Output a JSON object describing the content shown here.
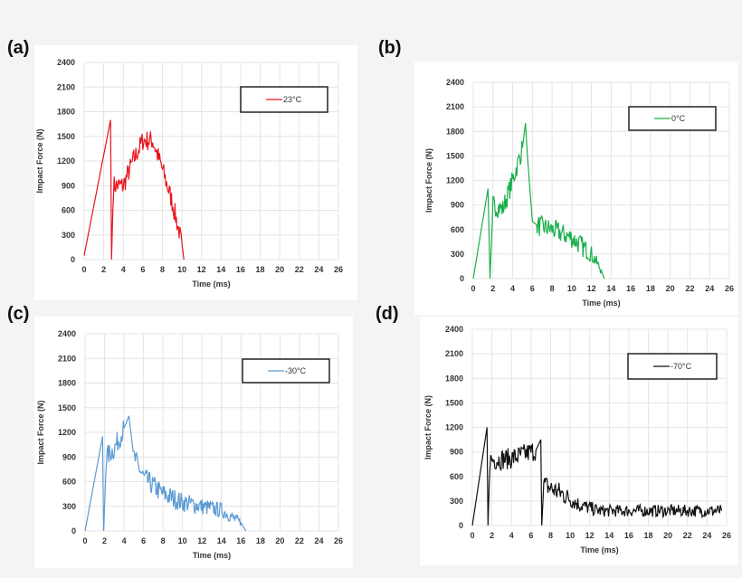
{
  "chart_data": [
    {
      "type": "line",
      "panel_label": "(a)",
      "xlabel": "Time (ms)",
      "ylabel": "Impact Force (N)",
      "xlim": [
        0,
        26
      ],
      "ylim": [
        0,
        2400
      ],
      "xticks": [
        0,
        2,
        4,
        6,
        8,
        10,
        12,
        14,
        16,
        18,
        20,
        22,
        24,
        26
      ],
      "yticks": [
        0,
        300,
        600,
        900,
        1200,
        1500,
        1800,
        2100,
        2400
      ],
      "grid": true,
      "legend_position": "top-right",
      "series": [
        {
          "name": "23°C",
          "color": "#e8141c",
          "x": [
            0,
            2.7,
            2.8,
            3,
            4,
            5,
            6,
            7,
            8,
            9,
            10,
            10.2
          ],
          "y": [
            50,
            1700,
            0,
            900,
            900,
            1200,
            1450,
            1450,
            1100,
            700,
            200,
            0
          ]
        }
      ]
    },
    {
      "type": "line",
      "panel_label": "(b)",
      "xlabel": "Time (ms)",
      "ylabel": "Impact Force (N)",
      "xlim": [
        0,
        26
      ],
      "ylim": [
        0,
        2400
      ],
      "xticks": [
        0,
        2,
        4,
        6,
        8,
        10,
        12,
        14,
        16,
        18,
        20,
        22,
        24,
        26
      ],
      "yticks": [
        0,
        300,
        600,
        900,
        1200,
        1500,
        1800,
        2100,
        2400
      ],
      "grid": true,
      "legend_position": "top-right",
      "series": [
        {
          "name": "0°C",
          "color": "#1aaf4b",
          "x": [
            0,
            1.5,
            1.7,
            2,
            3,
            4,
            5,
            5.3,
            5.5,
            6,
            6.5,
            8,
            10,
            12,
            13,
            13.3
          ],
          "y": [
            0,
            1100,
            0,
            900,
            850,
            1200,
            1600,
            1900,
            1500,
            700,
            650,
            600,
            500,
            300,
            100,
            0
          ]
        }
      ]
    },
    {
      "type": "line",
      "panel_label": "(c)",
      "xlabel": "Time (ms)",
      "ylabel": "Impact Force (N)",
      "xlim": [
        0,
        26
      ],
      "ylim": [
        0,
        2400
      ],
      "xticks": [
        0,
        2,
        4,
        6,
        8,
        10,
        12,
        14,
        16,
        18,
        20,
        22,
        24,
        26
      ],
      "yticks": [
        0,
        300,
        600,
        900,
        1200,
        1500,
        1800,
        2100,
        2400
      ],
      "grid": true,
      "legend_position": "top-right",
      "series": [
        {
          "name": "-30°C",
          "color": "#5b9bd5",
          "x": [
            0,
            1.8,
            1.9,
            2.2,
            3,
            4,
            4.5,
            5,
            6,
            8,
            10,
            12,
            14,
            16,
            16.5
          ],
          "y": [
            0,
            1150,
            0,
            900,
            1000,
            1250,
            1400,
            900,
            650,
            450,
            350,
            300,
            250,
            100,
            0
          ]
        }
      ]
    },
    {
      "type": "line",
      "panel_label": "(d)",
      "xlabel": "Time (ms)",
      "ylabel": "Impact Force (N)",
      "xlim": [
        0,
        26
      ],
      "ylim": [
        0,
        2400
      ],
      "xticks": [
        0,
        2,
        4,
        6,
        8,
        10,
        12,
        14,
        16,
        18,
        20,
        22,
        24,
        26
      ],
      "yticks": [
        0,
        300,
        600,
        900,
        1200,
        1500,
        1800,
        2100,
        2400
      ],
      "grid": true,
      "legend_position": "top-right",
      "series": [
        {
          "name": "-70°C",
          "color": "#111111",
          "x": [
            0,
            1.5,
            1.6,
            1.8,
            4,
            6.5,
            7,
            7.1,
            7.3,
            9,
            11,
            13,
            25.5
          ],
          "y": [
            0,
            1200,
            0,
            800,
            820,
            920,
            1050,
            0,
            500,
            400,
            250,
            180,
            180
          ]
        }
      ]
    }
  ]
}
